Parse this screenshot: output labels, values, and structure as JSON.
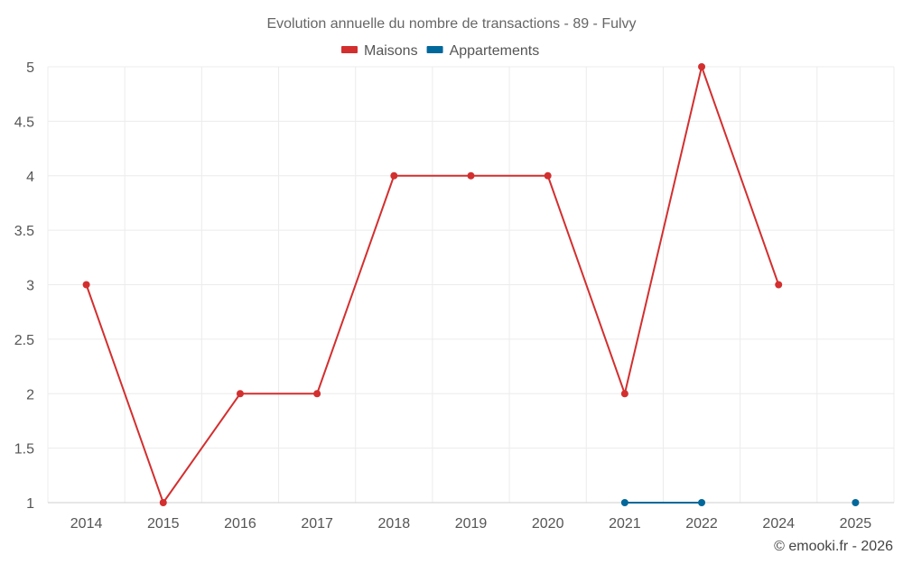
{
  "chart_data": {
    "type": "line",
    "title": "Evolution annuelle du nombre de transactions - 89 - Fulvy",
    "categories": [
      "2014",
      "2015",
      "2016",
      "2017",
      "2018",
      "2019",
      "2020",
      "2021",
      "2022",
      "2024",
      "2025"
    ],
    "ylim": [
      1,
      5
    ],
    "yticks": [
      1,
      1.5,
      2,
      2.5,
      3,
      3.5,
      4,
      4.5,
      5
    ],
    "ytick_labels": [
      "1",
      "1.5",
      "2",
      "2.5",
      "3",
      "3.5",
      "4",
      "4.5",
      "5"
    ],
    "grid": true,
    "legend_position": "top-center",
    "series": [
      {
        "name": "Maisons",
        "color": "#d32f2f",
        "values": [
          3,
          1,
          2,
          2,
          4,
          4,
          4,
          2,
          5,
          3,
          null
        ]
      },
      {
        "name": "Appartements",
        "color": "#01689b",
        "values": [
          null,
          null,
          null,
          null,
          null,
          null,
          null,
          1,
          1,
          null,
          1
        ]
      }
    ]
  },
  "credit": "© emooki.fr - 2026"
}
